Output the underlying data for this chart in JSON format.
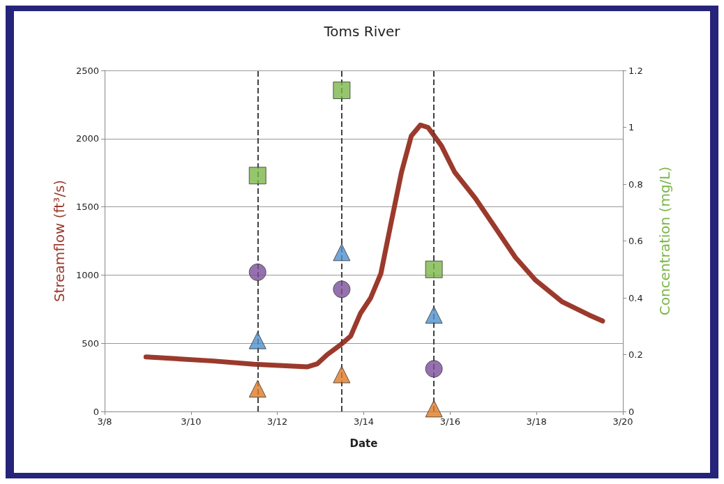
{
  "chart_data": {
    "type": "line",
    "title": "Toms River",
    "xlabel": "Date",
    "ylabel": "Streamflow (ft³/s)",
    "y2label": "Concentration (mg/L)",
    "xlim": [
      "--03-08",
      "--03-20"
    ],
    "xticks": [
      {
        "value": "--03-08",
        "label": "3/8"
      },
      {
        "value": "--03-10",
        "label": "3/10"
      },
      {
        "value": "--03-12",
        "label": "3/12"
      },
      {
        "value": "--03-14",
        "label": "3/14"
      },
      {
        "value": "--03-16",
        "label": "3/16"
      },
      {
        "value": "--03-18",
        "label": "3/18"
      },
      {
        "value": "--03-20",
        "label": "3/20"
      }
    ],
    "ylim": [
      0,
      2500
    ],
    "yticks": [
      0,
      500,
      1000,
      1500,
      2000,
      2500
    ],
    "y2lim": [
      0,
      1.2
    ],
    "y2ticks": [
      0,
      0.2,
      0.4,
      0.6,
      0.8,
      1,
      1.2
    ],
    "grid": "y",
    "series": [
      {
        "color": "#9b3a2c",
        "marker": "none",
        "x": [
          "--03-08T23:00",
          "--03-10T12:30",
          "--03-11T11:00",
          "--03-12T16:30",
          "--03-12T22:15",
          "--03-13T03:50",
          "--03-13T11:15",
          "--03-13T16:45",
          "--03-13T22:15",
          "--03-14T03:50",
          "--03-14T09:30",
          "--03-14T15:00",
          "--03-14T21:00",
          "--03-15T02:24",
          "--03-15T07:30",
          "--03-15T11:45",
          "--03-15T19:12",
          "--03-16T02:30",
          "--03-16T14:00",
          "--03-17T01:12",
          "--03-17T12:15",
          "--03-17T23:30",
          "--03-18T14:24",
          "--03-19T05:15",
          "--03-19T12:45"
        ],
        "values": [
          400,
          370,
          346,
          327,
          350,
          418,
          490,
          553,
          721,
          832,
          1010,
          1370,
          1755,
          2019,
          2100,
          2082,
          1947,
          1755,
          1563,
          1346,
          1130,
          962,
          803,
          707,
          663
        ]
      },
      {
        "type": "scatter",
        "axis": "y2",
        "color": "#7ab648",
        "marker": "square",
        "x": [
          "--03-11T13:00",
          "--03-13T11:45",
          "--03-15T15:00"
        ],
        "values": [
          0.83,
          1.13,
          0.5
        ]
      },
      {
        "type": "scatter",
        "axis": "y2",
        "color": "#7a4f9a",
        "marker": "circle",
        "x": [
          "--03-11T13:00",
          "--03-13T11:45",
          "--03-15T15:00"
        ],
        "values": [
          0.49,
          0.43,
          0.15
        ]
      },
      {
        "type": "scatter",
        "axis": "y2",
        "color": "#4f90cd",
        "marker": "triangle",
        "x": [
          "--03-11T13:00",
          "--03-13T11:45",
          "--03-15T15:00"
        ],
        "values": [
          0.25,
          0.56,
          0.34
        ]
      },
      {
        "type": "scatter",
        "axis": "y2",
        "color": "#e07b24",
        "marker": "triangle",
        "x": [
          "--03-11T13:00",
          "--03-13T11:45",
          "--03-15T15:00"
        ],
        "values": [
          0.08,
          0.13,
          0.01
        ]
      }
    ],
    "ref_lines": [
      {
        "axis": "x",
        "value": "--03-11T13:00",
        "color": "#404040",
        "line_style": "dashed"
      },
      {
        "axis": "x",
        "value": "--03-13T11:45",
        "color": "#404040",
        "line_style": "dashed"
      },
      {
        "axis": "x",
        "value": "--03-15T15:00",
        "color": "#404040",
        "line_style": "dashed"
      }
    ]
  }
}
